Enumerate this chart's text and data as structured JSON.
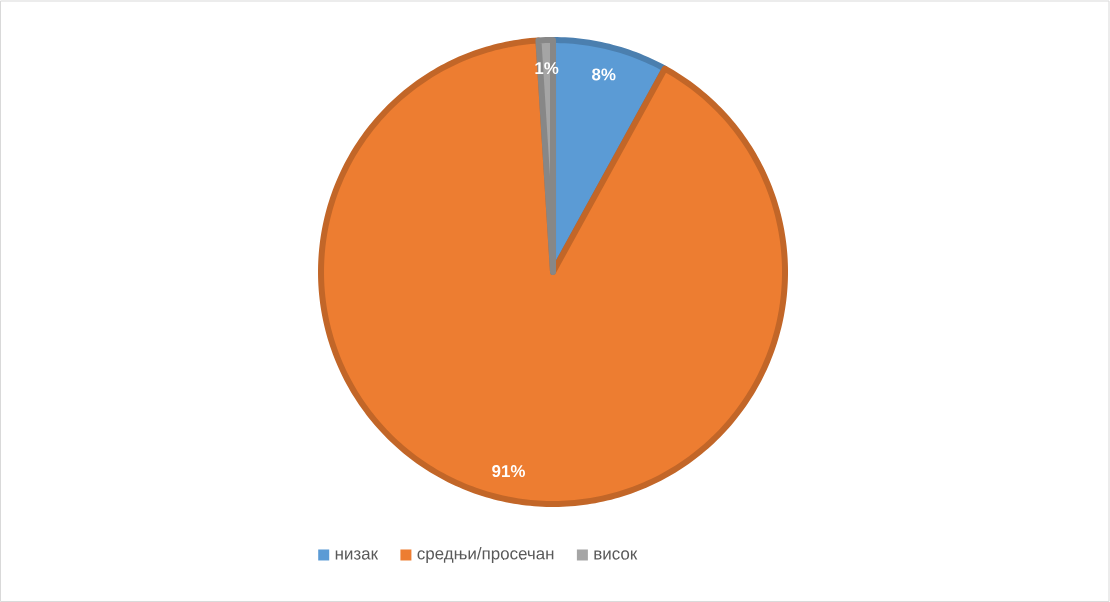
{
  "chart_data": {
    "type": "pie",
    "categories": [
      "низак",
      "средњи/просечан",
      "висок"
    ],
    "values": [
      8,
      91,
      1
    ],
    "colors": [
      "#5b9bd5",
      "#ed7d31",
      "#a5a5a5"
    ],
    "value_labels": [
      "8%",
      "91%",
      "1%"
    ],
    "legend": "bottom"
  }
}
